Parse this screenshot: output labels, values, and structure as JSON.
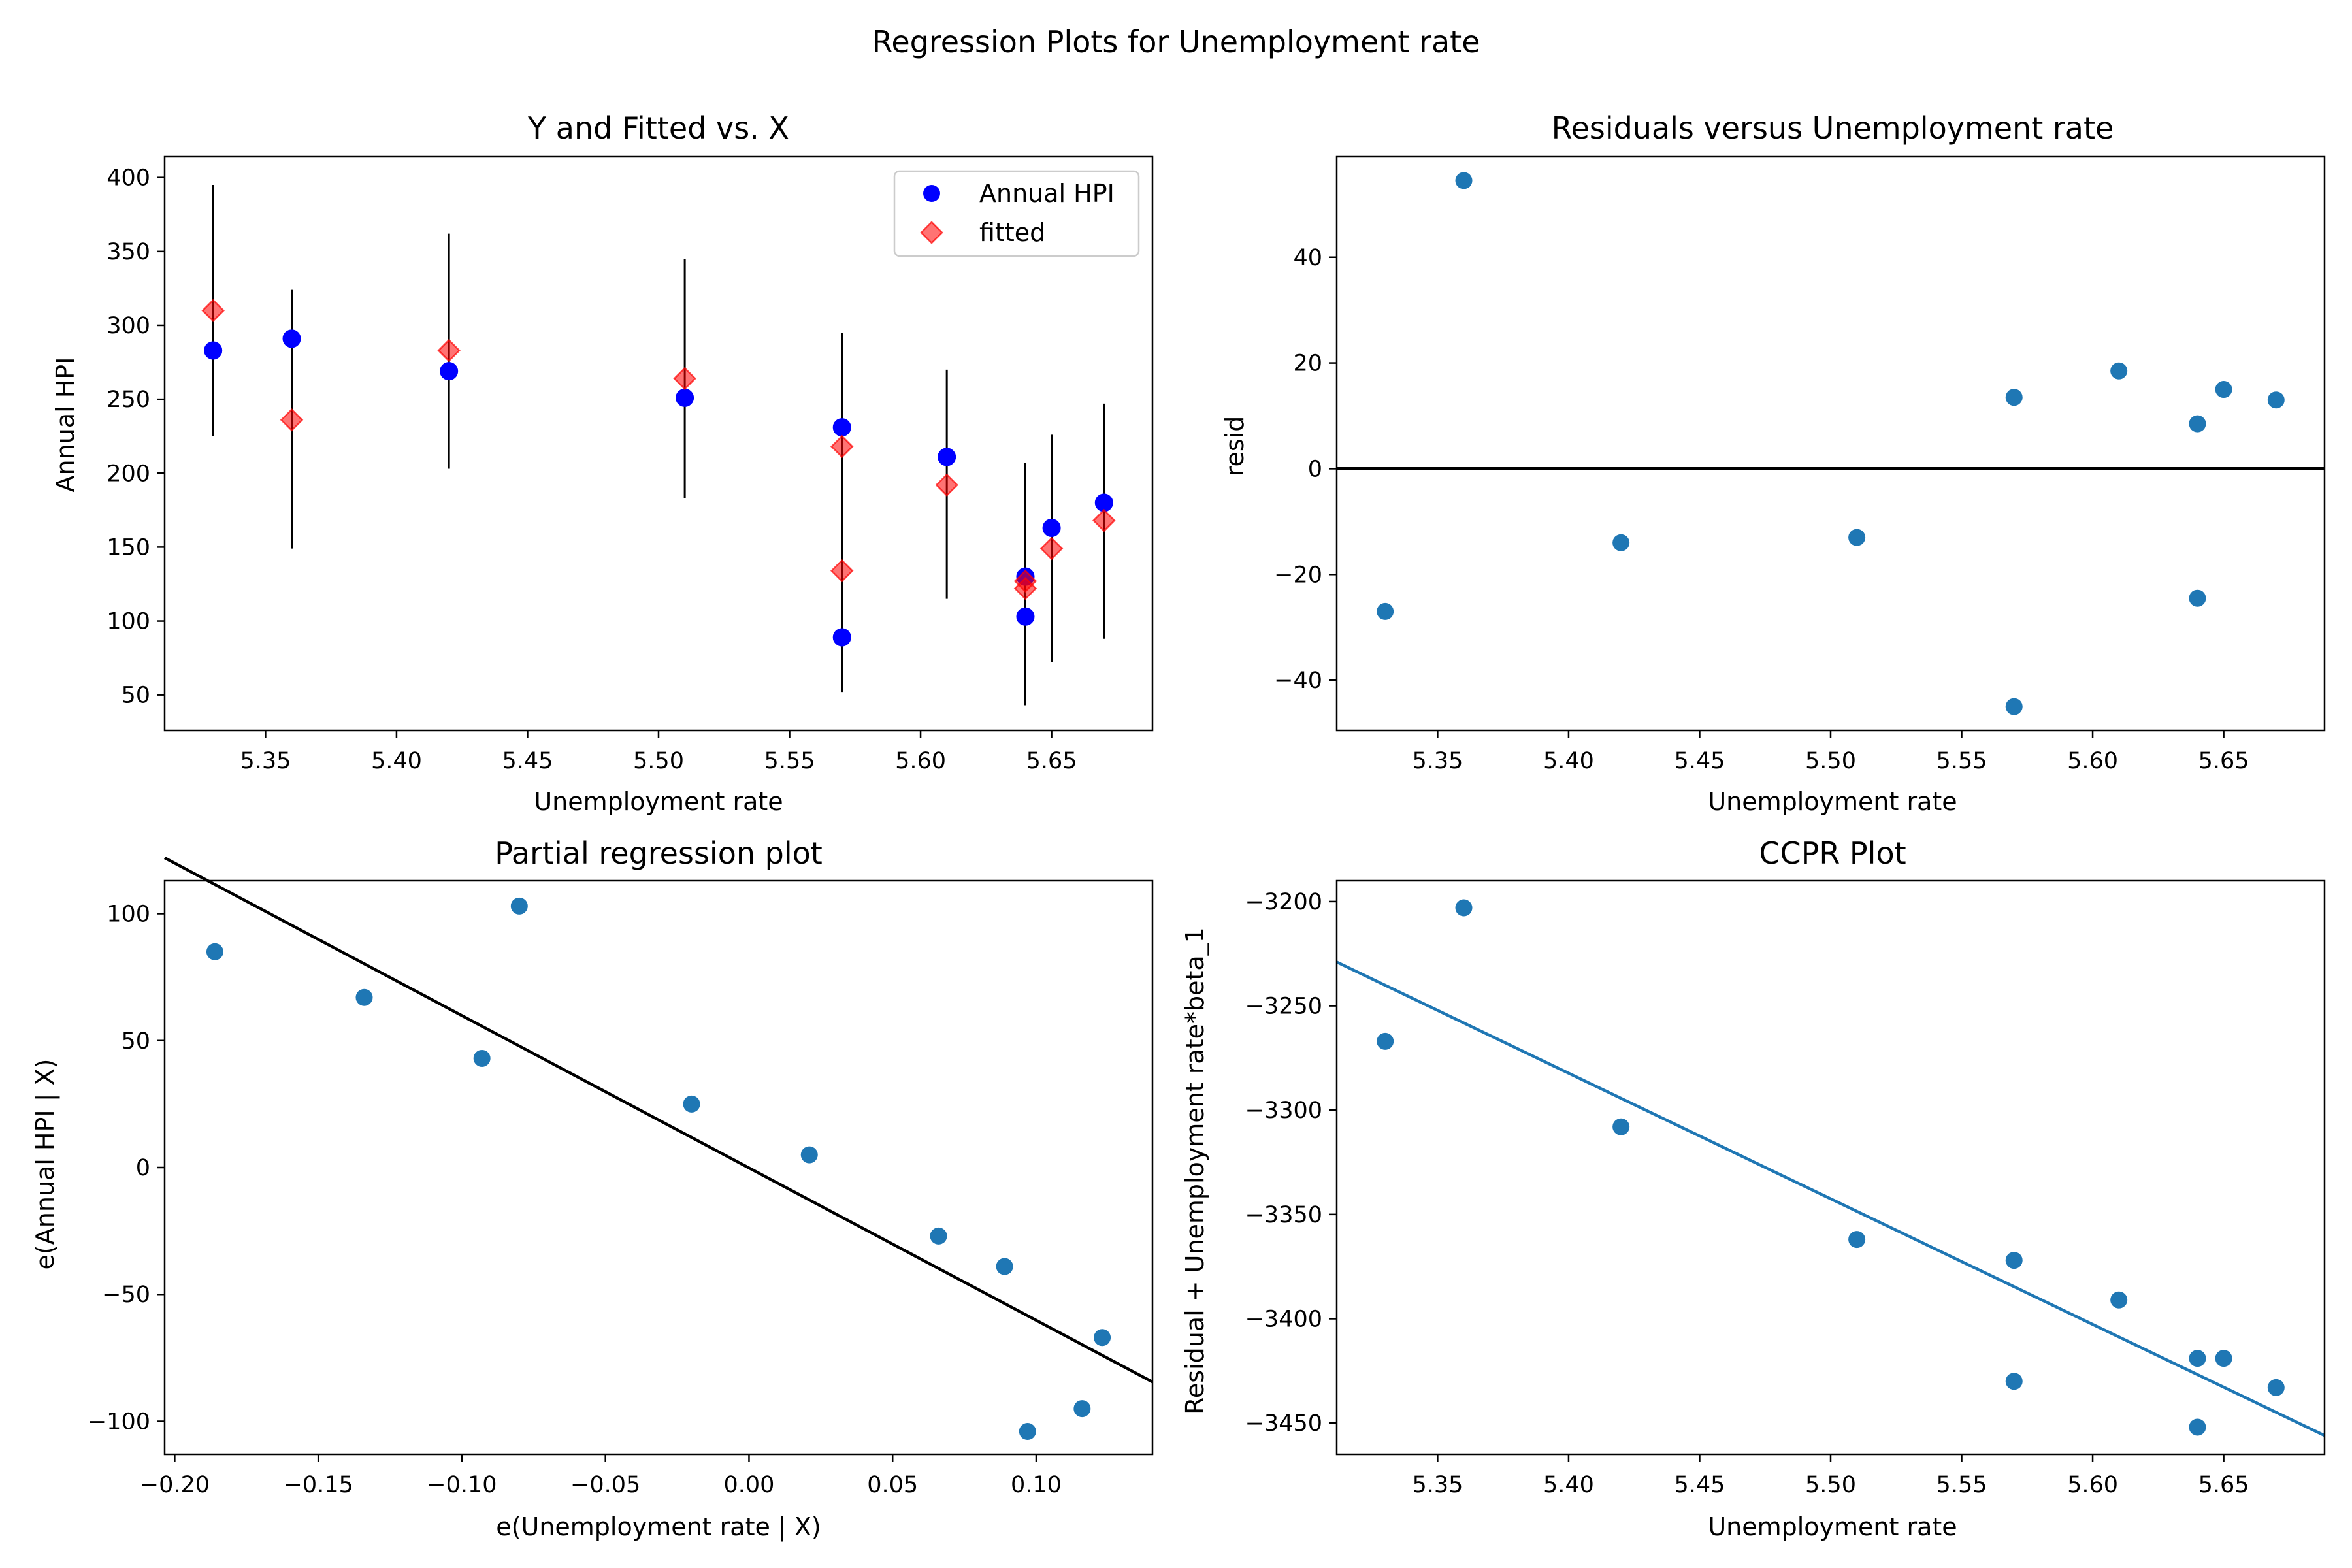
{
  "figure": {
    "title": "Regression Plots for Unemployment rate"
  },
  "chart_data": [
    {
      "id": "fitted",
      "type": "scatter",
      "title": "Y and Fitted vs. X",
      "xlabel": "Unemployment rate",
      "ylabel": "Annual HPI",
      "xlim": [
        5.3115,
        5.6885
      ],
      "ylim": [
        26,
        414
      ],
      "xticks": [
        5.35,
        5.4,
        5.45,
        5.5,
        5.55,
        5.6,
        5.65
      ],
      "xtick_labels": [
        "5.35",
        "5.40",
        "5.45",
        "5.50",
        "5.55",
        "5.60",
        "5.65"
      ],
      "yticks": [
        50,
        100,
        150,
        200,
        250,
        300,
        350,
        400
      ],
      "ytick_labels": [
        "50",
        "100",
        "150",
        "200",
        "250",
        "300",
        "350",
        "400"
      ],
      "legend": {
        "placement": "top-right",
        "entries": [
          "Annual HPI",
          "fitted"
        ]
      },
      "colors": {
        "observed": "#0000ff",
        "fitted": "#ff0000",
        "errorbar": "#000000"
      },
      "series": [
        {
          "name": "Annual HPI",
          "marker": "circle",
          "points": [
            {
              "x": 5.33,
              "y": 283
            },
            {
              "x": 5.36,
              "y": 291
            },
            {
              "x": 5.42,
              "y": 269
            },
            {
              "x": 5.51,
              "y": 251
            },
            {
              "x": 5.57,
              "y": 231
            },
            {
              "x": 5.57,
              "y": 89
            },
            {
              "x": 5.61,
              "y": 211
            },
            {
              "x": 5.64,
              "y": 130
            },
            {
              "x": 5.64,
              "y": 103
            },
            {
              "x": 5.65,
              "y": 163
            },
            {
              "x": 5.67,
              "y": 180
            }
          ]
        },
        {
          "name": "fitted",
          "marker": "diamond",
          "points": [
            {
              "x": 5.33,
              "y": 310
            },
            {
              "x": 5.36,
              "y": 236
            },
            {
              "x": 5.42,
              "y": 283
            },
            {
              "x": 5.51,
              "y": 264
            },
            {
              "x": 5.57,
              "y": 218
            },
            {
              "x": 5.57,
              "y": 134
            },
            {
              "x": 5.61,
              "y": 192
            },
            {
              "x": 5.64,
              "y": 127
            },
            {
              "x": 5.64,
              "y": 122
            },
            {
              "x": 5.65,
              "y": 149
            },
            {
              "x": 5.67,
              "y": 168
            }
          ]
        }
      ],
      "error_bars": [
        {
          "x": 5.33,
          "low": 225,
          "high": 395
        },
        {
          "x": 5.36,
          "low": 149,
          "high": 324
        },
        {
          "x": 5.42,
          "low": 203,
          "high": 362
        },
        {
          "x": 5.51,
          "low": 183,
          "high": 345
        },
        {
          "x": 5.57,
          "low": 131,
          "high": 295
        },
        {
          "x": 5.57,
          "low": 52,
          "high": 216
        },
        {
          "x": 5.61,
          "low": 115,
          "high": 270
        },
        {
          "x": 5.64,
          "low": 48,
          "high": 207
        },
        {
          "x": 5.64,
          "low": 43,
          "high": 202
        },
        {
          "x": 5.65,
          "low": 72,
          "high": 226
        },
        {
          "x": 5.67,
          "low": 88,
          "high": 247
        }
      ]
    },
    {
      "id": "resid",
      "type": "scatter",
      "title": "Residuals versus Unemployment rate",
      "xlabel": "Unemployment rate",
      "ylabel": "resid",
      "xlim": [
        5.3115,
        5.6885
      ],
      "ylim": [
        -49.5,
        59
      ],
      "xticks": [
        5.35,
        5.4,
        5.45,
        5.5,
        5.55,
        5.6,
        5.65
      ],
      "xtick_labels": [
        "5.35",
        "5.40",
        "5.45",
        "5.50",
        "5.55",
        "5.60",
        "5.65"
      ],
      "yticks": [
        -40,
        -20,
        0,
        20,
        40
      ],
      "ytick_labels": [
        "−40",
        "−20",
        "0",
        "20",
        "40"
      ],
      "hline": 0,
      "colors": {
        "points": "#1f77b4",
        "line": "#000000"
      },
      "series": [
        {
          "points": [
            {
              "x": 5.33,
              "y": -27
            },
            {
              "x": 5.36,
              "y": 54.5
            },
            {
              "x": 5.42,
              "y": -14
            },
            {
              "x": 5.51,
              "y": -13
            },
            {
              "x": 5.57,
              "y": 13.5
            },
            {
              "x": 5.57,
              "y": -45
            },
            {
              "x": 5.61,
              "y": 18.5
            },
            {
              "x": 5.64,
              "y": 8.5
            },
            {
              "x": 5.64,
              "y": -24.5
            },
            {
              "x": 5.65,
              "y": 15
            },
            {
              "x": 5.67,
              "y": 13
            }
          ]
        }
      ]
    },
    {
      "id": "partreg",
      "type": "scatter",
      "title": "Partial regression plot",
      "xlabel": "e(Unemployment rate | X)",
      "ylabel": "e(Annual HPI | X)",
      "xlim": [
        -0.2035,
        0.1405
      ],
      "ylim": [
        -113,
        113
      ],
      "xticks": [
        -0.2,
        -0.15,
        -0.1,
        -0.05,
        0.0,
        0.05,
        0.1
      ],
      "xtick_labels": [
        "−0.20",
        "−0.15",
        "−0.10",
        "−0.05",
        "0.00",
        "0.05",
        "0.10"
      ],
      "yticks": [
        -100,
        -50,
        0,
        50,
        100
      ],
      "ytick_labels": [
        "−100",
        "−50",
        "0",
        "50",
        "100"
      ],
      "fit_line": {
        "x": [
          -0.2035,
          0.1405
        ],
        "y": [
          122,
          -84.5
        ]
      },
      "colors": {
        "points": "#1f77b4",
        "line": "#000000"
      },
      "series": [
        {
          "points": [
            {
              "x": -0.186,
              "y": 85
            },
            {
              "x": -0.134,
              "y": 67
            },
            {
              "x": -0.093,
              "y": 43
            },
            {
              "x": -0.08,
              "y": 103
            },
            {
              "x": -0.02,
              "y": 25
            },
            {
              "x": 0.021,
              "y": 5
            },
            {
              "x": 0.066,
              "y": -27
            },
            {
              "x": 0.089,
              "y": -39
            },
            {
              "x": 0.097,
              "y": -104
            },
            {
              "x": 0.116,
              "y": -95
            },
            {
              "x": 0.123,
              "y": -67
            }
          ]
        }
      ]
    },
    {
      "id": "ccpr",
      "type": "scatter",
      "title": "CCPR Plot",
      "xlabel": "Unemployment rate",
      "ylabel": "Residual + Unemployment rate*beta_1",
      "xlim": [
        5.3115,
        5.6885
      ],
      "ylim": [
        -3465,
        -3190
      ],
      "xticks": [
        5.35,
        5.4,
        5.45,
        5.5,
        5.55,
        5.6,
        5.65
      ],
      "xtick_labels": [
        "5.35",
        "5.40",
        "5.45",
        "5.50",
        "5.55",
        "5.60",
        "5.65"
      ],
      "yticks": [
        -3450,
        -3400,
        -3350,
        -3300,
        -3250,
        -3200
      ],
      "ytick_labels": [
        "−3450",
        "−3400",
        "−3350",
        "−3300",
        "−3250",
        "−3200"
      ],
      "fit_line": {
        "x": [
          5.3115,
          5.6885
        ],
        "y": [
          -3229,
          -3456
        ]
      },
      "colors": {
        "points": "#1f77b4",
        "line": "#1f77b4"
      },
      "series": [
        {
          "points": [
            {
              "x": 5.33,
              "y": -3267
            },
            {
              "x": 5.36,
              "y": -3203
            },
            {
              "x": 5.42,
              "y": -3308
            },
            {
              "x": 5.51,
              "y": -3362
            },
            {
              "x": 5.57,
              "y": -3372
            },
            {
              "x": 5.57,
              "y": -3430
            },
            {
              "x": 5.61,
              "y": -3391
            },
            {
              "x": 5.64,
              "y": -3419
            },
            {
              "x": 5.64,
              "y": -3452
            },
            {
              "x": 5.65,
              "y": -3419
            },
            {
              "x": 5.67,
              "y": -3433
            }
          ]
        }
      ]
    }
  ]
}
